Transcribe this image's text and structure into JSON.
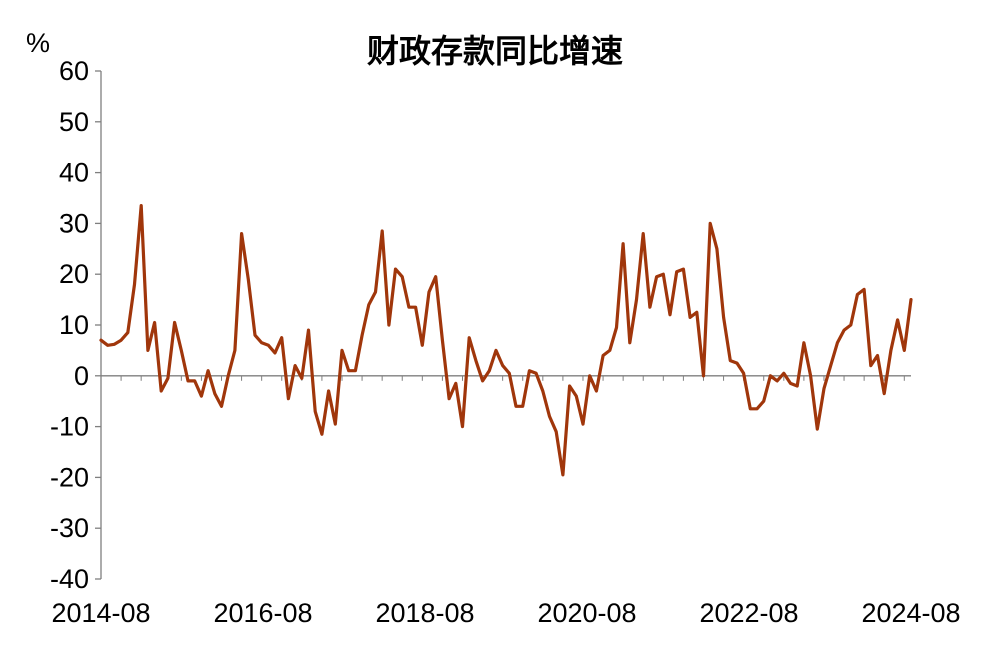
{
  "chart_data": {
    "type": "line",
    "title": "财政存款同比增速",
    "ylabel": "%",
    "xlabel": "",
    "ylim": [
      -40,
      60
    ],
    "yticks": [
      60,
      50,
      40,
      30,
      20,
      10,
      0,
      -10,
      -20,
      -30,
      -40
    ],
    "x_tick_labels": [
      "2014-08",
      "2016-08",
      "2018-08",
      "2020-08",
      "2022-08",
      "2024-08"
    ],
    "x_start": "2014-08",
    "x_end": "2024-08",
    "grid": false,
    "legend": "none",
    "series": [
      {
        "color": "#A0360B",
        "values": [
          7,
          6,
          6.2,
          7,
          8.5,
          18,
          33.5,
          5,
          10.5,
          -3,
          -0.5,
          10.5,
          5,
          -1,
          -1,
          -4,
          1,
          -3.5,
          -6,
          0,
          5,
          28,
          19,
          8,
          6.5,
          6,
          4.5,
          7.5,
          -4.5,
          2,
          -0.5,
          9,
          -7,
          -11.5,
          -3,
          -9.5,
          5,
          1,
          1,
          8,
          14,
          16.5,
          28.5,
          10,
          21,
          19.5,
          13.5,
          13.5,
          6,
          16.5,
          19.5,
          7,
          -4.5,
          -1.5,
          -10,
          7.5,
          3,
          -1,
          1,
          5,
          2,
          0.5,
          -6,
          -6,
          1,
          0.5,
          -3,
          -8,
          -11,
          -19.5,
          -2,
          -4,
          -9.5,
          0,
          -3,
          4,
          5,
          9.5,
          26,
          6.5,
          15,
          28,
          13.5,
          19.5,
          20,
          12,
          20.5,
          21,
          11.5,
          12.5,
          0,
          30,
          25,
          11.5,
          3,
          2.5,
          0.5,
          -6.5,
          -6.5,
          -5,
          0,
          -1,
          0.5,
          -1.5,
          -2,
          6.5,
          0,
          -10.5,
          -2.5,
          2,
          6.5,
          9,
          10,
          16,
          17,
          2,
          4,
          -3.5,
          5,
          11,
          5,
          15
        ]
      }
    ]
  }
}
